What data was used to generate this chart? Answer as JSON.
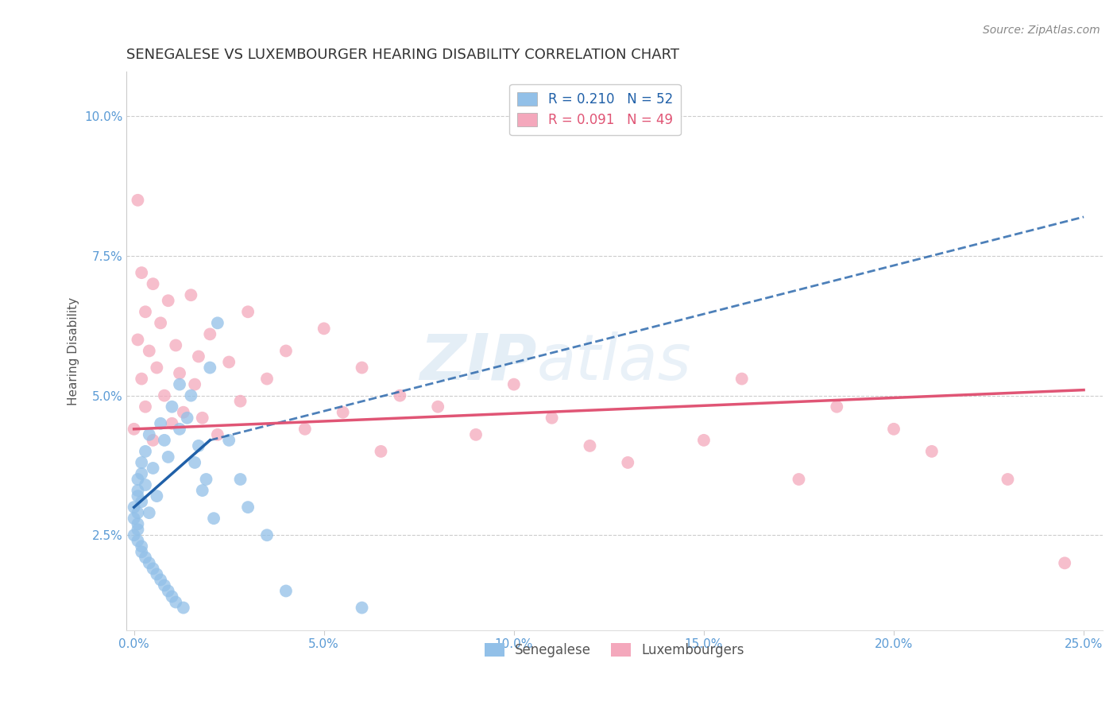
{
  "title": "SENEGALESE VS LUXEMBOURGER HEARING DISABILITY CORRELATION CHART",
  "source": "Source: ZipAtlas.com",
  "tick_color": "#5b9bd5",
  "ylabel": "Hearing Disability",
  "xlim": [
    -0.002,
    0.255
  ],
  "ylim": [
    0.008,
    0.108
  ],
  "xticks": [
    0.0,
    0.05,
    0.1,
    0.15,
    0.2,
    0.25
  ],
  "xticklabels": [
    "0.0%",
    "5.0%",
    "10.0%",
    "15.0%",
    "20.0%",
    "25.0%"
  ],
  "yticks": [
    0.025,
    0.05,
    0.075,
    0.1
  ],
  "yticklabels": [
    "2.5%",
    "5.0%",
    "7.5%",
    "10.0%"
  ],
  "senegalese_color": "#92c0e8",
  "luxembourger_color": "#f4a8bc",
  "senegalese_trend_color": "#2060a8",
  "luxembourger_trend_color": "#e05575",
  "R_senegalese": 0.21,
  "N_senegalese": 52,
  "R_luxembourger": 0.091,
  "N_luxembourger": 49,
  "legend_labels": [
    "Senegalese",
    "Luxembourgers"
  ],
  "watermark_zip": "ZIP",
  "watermark_atlas": "atlas",
  "background_color": "#ffffff",
  "grid_color": "#cccccc",
  "senegalese_x": [
    0.0,
    0.0,
    0.0,
    0.001,
    0.001,
    0.001,
    0.001,
    0.001,
    0.001,
    0.001,
    0.002,
    0.002,
    0.002,
    0.002,
    0.002,
    0.003,
    0.003,
    0.003,
    0.004,
    0.004,
    0.004,
    0.005,
    0.005,
    0.006,
    0.006,
    0.007,
    0.007,
    0.008,
    0.008,
    0.009,
    0.009,
    0.01,
    0.01,
    0.011,
    0.012,
    0.012,
    0.013,
    0.014,
    0.015,
    0.016,
    0.017,
    0.018,
    0.019,
    0.02,
    0.021,
    0.022,
    0.025,
    0.028,
    0.03,
    0.035,
    0.04,
    0.06
  ],
  "senegalese_y": [
    0.03,
    0.025,
    0.028,
    0.032,
    0.026,
    0.035,
    0.029,
    0.024,
    0.033,
    0.027,
    0.031,
    0.023,
    0.036,
    0.022,
    0.038,
    0.021,
    0.034,
    0.04,
    0.02,
    0.043,
    0.029,
    0.019,
    0.037,
    0.018,
    0.032,
    0.045,
    0.017,
    0.016,
    0.042,
    0.015,
    0.039,
    0.014,
    0.048,
    0.013,
    0.044,
    0.052,
    0.012,
    0.046,
    0.05,
    0.038,
    0.041,
    0.033,
    0.035,
    0.055,
    0.028,
    0.063,
    0.042,
    0.035,
    0.03,
    0.025,
    0.015,
    0.012
  ],
  "luxembourger_x": [
    0.0,
    0.001,
    0.001,
    0.002,
    0.002,
    0.003,
    0.003,
    0.004,
    0.005,
    0.005,
    0.006,
    0.007,
    0.008,
    0.009,
    0.01,
    0.011,
    0.012,
    0.013,
    0.015,
    0.016,
    0.017,
    0.018,
    0.02,
    0.022,
    0.025,
    0.028,
    0.03,
    0.035,
    0.04,
    0.045,
    0.05,
    0.055,
    0.06,
    0.065,
    0.07,
    0.08,
    0.09,
    0.1,
    0.11,
    0.12,
    0.13,
    0.15,
    0.16,
    0.175,
    0.185,
    0.2,
    0.21,
    0.23,
    0.245
  ],
  "luxembourger_y": [
    0.044,
    0.085,
    0.06,
    0.072,
    0.053,
    0.065,
    0.048,
    0.058,
    0.07,
    0.042,
    0.055,
    0.063,
    0.05,
    0.067,
    0.045,
    0.059,
    0.054,
    0.047,
    0.068,
    0.052,
    0.057,
    0.046,
    0.061,
    0.043,
    0.056,
    0.049,
    0.065,
    0.053,
    0.058,
    0.044,
    0.062,
    0.047,
    0.055,
    0.04,
    0.05,
    0.048,
    0.043,
    0.052,
    0.046,
    0.041,
    0.038,
    0.042,
    0.053,
    0.035,
    0.048,
    0.044,
    0.04,
    0.035,
    0.02
  ],
  "title_fontsize": 13,
  "axis_label_fontsize": 11,
  "tick_fontsize": 11,
  "legend_fontsize": 12,
  "sen_trend_x_start": 0.0,
  "sen_trend_x_solid_end": 0.02,
  "sen_trend_x_dash_end": 0.25,
  "sen_trend_y_start": 0.03,
  "sen_trend_y_solid_end": 0.042,
  "sen_trend_y_dash_end": 0.082,
  "lux_trend_x_start": 0.0,
  "lux_trend_x_end": 0.25,
  "lux_trend_y_start": 0.044,
  "lux_trend_y_end": 0.051
}
